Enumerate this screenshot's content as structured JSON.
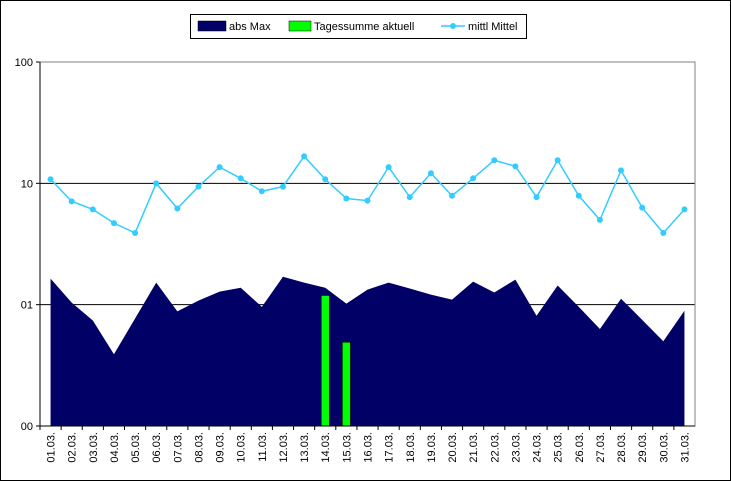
{
  "chart_data": {
    "type": "area",
    "categories": [
      "01.03.",
      "02.03.",
      "03.03.",
      "04.03.",
      "05.03.",
      "06.03.",
      "07.03.",
      "08.03.",
      "09.03.",
      "10.03.",
      "11.03.",
      "12.03.",
      "13.03.",
      "14.03.",
      "15.03.",
      "16.03.",
      "17.03.",
      "18.03.",
      "19.03.",
      "20.03.",
      "21.03.",
      "22.03.",
      "23.03.",
      "24.03.",
      "25.03.",
      "26.03.",
      "27.03.",
      "28.03.",
      "29.03.",
      "30.03.",
      "31.03."
    ],
    "series": [
      {
        "name": "abs Max",
        "type": "area",
        "color": "#000066",
        "values": [
          1.64,
          1.04,
          0.74,
          0.39,
          0.77,
          1.52,
          0.88,
          1.08,
          1.28,
          1.38,
          0.96,
          1.7,
          1.52,
          1.38,
          1.02,
          1.33,
          1.52,
          1.36,
          1.21,
          1.1,
          1.55,
          1.26,
          1.61,
          0.81,
          1.44,
          0.96,
          0.63,
          1.12,
          0.75,
          0.5,
          0.89
        ]
      },
      {
        "name": "Tagessumme aktuell",
        "type": "bar",
        "color": "#00ff00",
        "values": [
          null,
          null,
          null,
          null,
          null,
          null,
          null,
          null,
          null,
          null,
          null,
          null,
          null,
          1.19,
          0.49,
          null,
          null,
          null,
          null,
          null,
          null,
          null,
          null,
          null,
          null,
          null,
          null,
          null,
          null,
          null,
          null
        ]
      },
      {
        "name": "mittl Mittel",
        "type": "line",
        "color": "#33ccff",
        "values": [
          10.8,
          7.1,
          6.1,
          4.7,
          3.9,
          10.0,
          6.2,
          9.4,
          13.6,
          11.0,
          8.6,
          9.4,
          16.7,
          10.8,
          7.5,
          7.2,
          13.6,
          7.7,
          12.1,
          7.9,
          11.0,
          15.5,
          13.8,
          7.7,
          15.5,
          7.9,
          5.0,
          12.8,
          6.3,
          3.9,
          6.1
        ]
      }
    ],
    "ylim": [
      0.1,
      100
    ],
    "yticks": [
      {
        "value": 0.1,
        "label": "00"
      },
      {
        "value": 1,
        "label": "01"
      },
      10,
      100
    ],
    "log_scale": true,
    "grid": true,
    "legend": "top"
  }
}
